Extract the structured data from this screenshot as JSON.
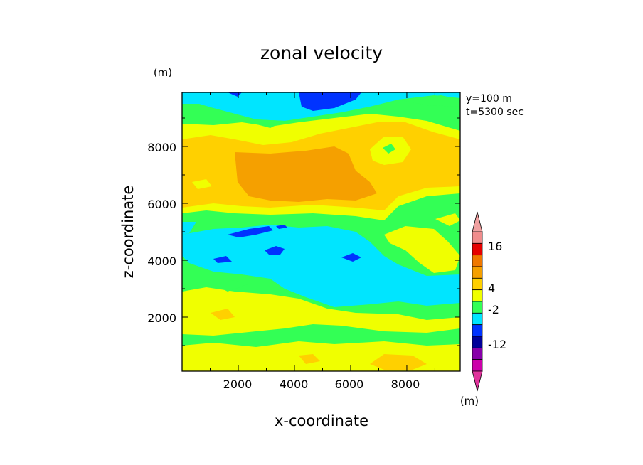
{
  "chart_data": {
    "type": "heatmap",
    "subtype": "filled-contour",
    "title": "zonal velocity",
    "xlabel": "x-coordinate",
    "ylabel": "z-coordinate",
    "y_unit": "(m)",
    "xlim": [
      0,
      9900
    ],
    "ylim": [
      100,
      9900
    ],
    "xticks": [
      "2000",
      "4000",
      "6000",
      "8000"
    ],
    "yticks": [
      "2000",
      "4000",
      "6000",
      "8000"
    ],
    "annotations": [
      "y=100 m",
      "t=5300 sec"
    ],
    "colorbar": {
      "unit": "(m)",
      "tick_labels": [
        "16",
        "4",
        "-2",
        "-12"
      ],
      "levels_top_to_bottom": [
        {
          "color": "#f08c8c"
        },
        {
          "color": "#e60000"
        },
        {
          "color": "#f07800"
        },
        {
          "color": "#f5a000"
        },
        {
          "color": "#ffd000"
        },
        {
          "color": "#f0ff00"
        },
        {
          "color": "#33ff55"
        },
        {
          "color": "#00e5ff"
        },
        {
          "color": "#0033ff"
        },
        {
          "color": "#000099"
        },
        {
          "color": "#8800aa"
        },
        {
          "color": "#cc00aa"
        }
      ],
      "end_arrows": [
        "#f0a0a0",
        "#e0339c"
      ]
    },
    "regions": [
      {
        "level": "green",
        "description": "background band near z=100-1000 and z=4400-6000"
      },
      {
        "level": "yellow",
        "description": "bands near z=1000-2800 and z=600-400"
      },
      {
        "level": "light-orange",
        "description": "upper band z=6000-9000"
      },
      {
        "level": "orange",
        "description": "core near x=2000-6800, z=6000-7900"
      },
      {
        "level": "cyan",
        "description": "mid band z=3000-5500 and top z=9000-9900"
      },
      {
        "level": "blue",
        "description": "patches near z=4000-5000 and top x=4200-6000"
      }
    ]
  }
}
